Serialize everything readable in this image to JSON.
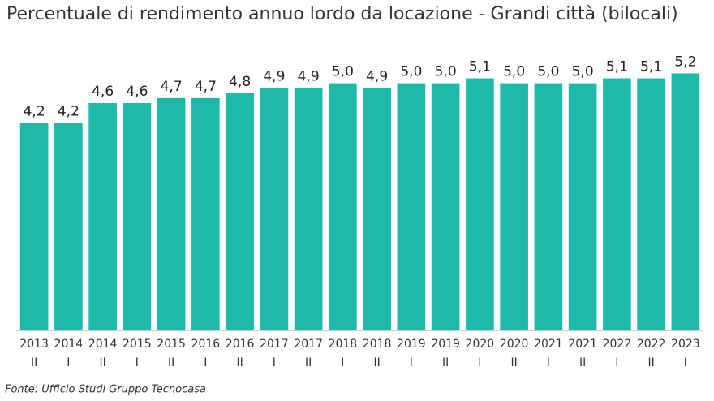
{
  "chart_data": {
    "type": "bar",
    "title": "Percentuale di rendimento annuo lordo da locazione - Grandi città (bilocali)",
    "categories": [
      [
        "2013",
        "II"
      ],
      [
        "2014",
        "I"
      ],
      [
        "2014",
        "II"
      ],
      [
        "2015",
        "I"
      ],
      [
        "2015",
        "II"
      ],
      [
        "2016",
        "I"
      ],
      [
        "2016",
        "II"
      ],
      [
        "2017",
        "I"
      ],
      [
        "2017",
        "II"
      ],
      [
        "2018",
        "I"
      ],
      [
        "2018",
        "II"
      ],
      [
        "2019",
        "I"
      ],
      [
        "2019",
        "II"
      ],
      [
        "2020",
        "I"
      ],
      [
        "2020",
        "II"
      ],
      [
        "2021",
        "I"
      ],
      [
        "2021",
        "II"
      ],
      [
        "2022",
        "I"
      ],
      [
        "2022",
        "II"
      ],
      [
        "2023",
        "I"
      ]
    ],
    "values": [
      4.2,
      4.2,
      4.6,
      4.6,
      4.7,
      4.7,
      4.8,
      4.9,
      4.9,
      5.0,
      4.9,
      5.0,
      5.0,
      5.1,
      5.0,
      5.0,
      5.0,
      5.1,
      5.1,
      5.2
    ],
    "value_labels": [
      "4,2",
      "4,2",
      "4,6",
      "4,6",
      "4,7",
      "4,7",
      "4,8",
      "4,9",
      "4,9",
      "5,0",
      "4,9",
      "5,0",
      "5,0",
      "5,1",
      "5,0",
      "5,0",
      "5,0",
      "5,1",
      "5,1",
      "5,2"
    ],
    "color": "#1db9a9",
    "ylim": [
      0,
      5.7
    ],
    "source": "Fonte: Ufficio Studi Gruppo Tecnocasa"
  }
}
